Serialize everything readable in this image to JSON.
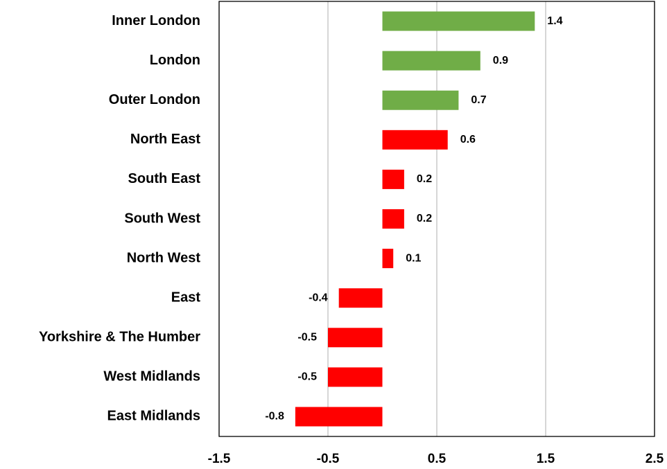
{
  "chart_data": {
    "type": "bar",
    "orientation": "horizontal",
    "categories": [
      "Inner London",
      "London",
      "Outer London",
      "North East",
      "South East",
      "South West",
      "North West",
      "East",
      "Yorkshire & The Humber",
      "West Midlands",
      "East Midlands"
    ],
    "values": [
      1.4,
      0.9,
      0.7,
      0.6,
      0.2,
      0.2,
      0.1,
      -0.4,
      -0.5,
      -0.5,
      -0.8
    ],
    "colors": [
      "#70ad47",
      "#70ad47",
      "#70ad47",
      "#ff0000",
      "#ff0000",
      "#ff0000",
      "#ff0000",
      "#ff0000",
      "#ff0000",
      "#ff0000",
      "#ff0000"
    ],
    "xlim": [
      -1.5,
      2.5
    ],
    "xticks": [
      -1.5,
      -0.5,
      0.5,
      1.5,
      2.5
    ],
    "grid": true
  }
}
